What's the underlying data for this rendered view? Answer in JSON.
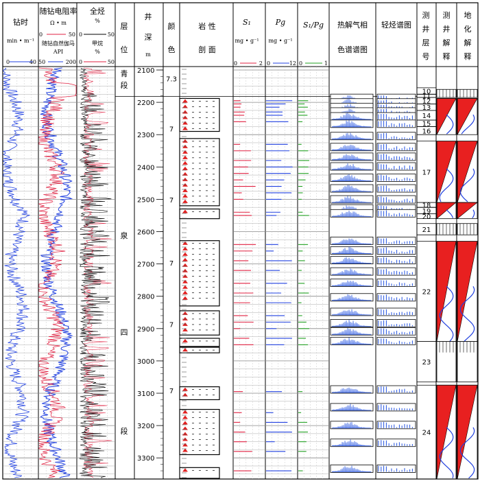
{
  "headers": {
    "drill_time": {
      "title": "钻时",
      "unit": "min • m⁻¹",
      "scale_min": "0",
      "scale_max": "40"
    },
    "resistivity": {
      "title": "随钻电阻率",
      "unit": "Ω • m",
      "scale_min": "0",
      "scale_max": "50",
      "gamma_title": "随钻自然伽马",
      "gamma_unit": "API",
      "gamma_min": "50",
      "gamma_max": "200"
    },
    "total_gas": {
      "title": "全烃",
      "unit": "%",
      "scale_min": "0",
      "scale_max": "50",
      "methane_title": "甲烷",
      "methane_unit": "%",
      "methane_min": "0",
      "methane_max": "50"
    },
    "layer": {
      "line1": "层",
      "line2": "位"
    },
    "depth": {
      "line1": "井",
      "line2": "深",
      "unit": "m"
    },
    "color": {
      "line1": "颜",
      "line2": "色"
    },
    "lithology": {
      "line1": "岩 性",
      "line2": "剖 面"
    },
    "s1": {
      "title": "S₁",
      "unit": "mg • g⁻¹",
      "scale_min": "0",
      "scale_max": "2"
    },
    "pg": {
      "title": "Pg",
      "unit": "mg • g⁻¹",
      "scale_min": "0",
      "scale_max": "12"
    },
    "s1pg": {
      "title": "S₁/Pg",
      "scale_min": "0",
      "scale_max": "1"
    },
    "pyrolysis": {
      "line1": "热解气相",
      "line2": "色谱谱图"
    },
    "light_hc": {
      "line1": "轻烃谱图"
    },
    "test_layer": {
      "line1": "测",
      "line2": "井",
      "line3": "层",
      "line4": "号"
    },
    "log_interp": {
      "line1": "测",
      "line2": "井",
      "line3": "解",
      "line4": "释"
    },
    "geo_interp": {
      "line1": "地",
      "line2": "化",
      "line3": "解",
      "line4": "释"
    }
  },
  "depth_ticks": [
    "2100",
    "2200",
    "2300",
    "2400",
    "2500",
    "2600",
    "2700",
    "2800",
    "2900",
    "3000",
    "3100",
    "3200",
    "3300"
  ],
  "formation": {
    "upper": "青一段",
    "upper_c1": "青",
    "upper_c2": "一",
    "upper_c3": "段",
    "lower_c1": "泉",
    "lower_c2": "四",
    "lower_c3": "段"
  },
  "color_codes": [
    "7.3",
    "7",
    "7",
    "7",
    "7",
    "7"
  ],
  "layer_numbers": [
    "10",
    "11",
    "12",
    "13",
    "14",
    "15",
    "16",
    "17",
    "18",
    "19",
    "20",
    "21",
    "22",
    "23",
    "24"
  ],
  "colors": {
    "drill_time": "#2040e0",
    "resistivity": "#e02040",
    "gamma": "#2040e0",
    "gas": "#000000",
    "methane": "#e02040",
    "s1": "#e02040",
    "pg": "#2040e0",
    "s1pg": "#20a020",
    "grid": "#888888",
    "spectra": "#2050e0"
  }
}
